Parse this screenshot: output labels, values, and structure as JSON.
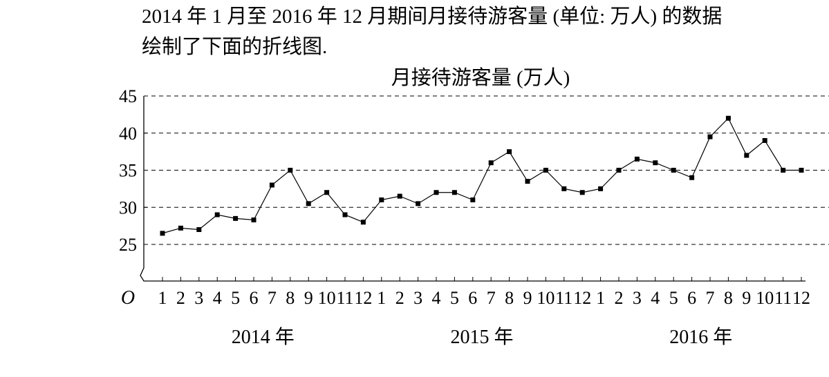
{
  "intro": [
    "2014 年 1 月至 2016 年 12 月期间月接待游客量 (单位: 万人) 的数据",
    "绘制了下面的折线图."
  ],
  "chart_data": {
    "type": "line",
    "title": "月接待游客量 (万人)",
    "origin_label": "O",
    "categories": [
      "1",
      "2",
      "3",
      "4",
      "5",
      "6",
      "7",
      "8",
      "9",
      "10",
      "11",
      "12",
      "1",
      "2",
      "3",
      "4",
      "5",
      "6",
      "7",
      "8",
      "9",
      "10",
      "11",
      "12",
      "1",
      "2",
      "3",
      "4",
      "5",
      "6",
      "7",
      "8",
      "9",
      "10",
      "11",
      "12"
    ],
    "year_labels": [
      "2014 年",
      "2015 年",
      "2016 年"
    ],
    "series": [
      {
        "color": "#000000",
        "values": [
          26.5,
          27.2,
          27,
          29,
          28.5,
          28.3,
          33,
          35,
          30.5,
          32,
          29,
          28,
          31,
          31.5,
          30.5,
          32,
          32,
          31,
          36,
          37.5,
          33.5,
          35,
          32.5,
          32,
          32.5,
          35,
          36.5,
          36,
          35,
          34,
          39.5,
          42,
          37,
          39,
          35,
          35
        ]
      }
    ],
    "ylim": [
      20,
      45
    ],
    "yticks": [
      25,
      30,
      35,
      40,
      45
    ],
    "grid": true
  }
}
